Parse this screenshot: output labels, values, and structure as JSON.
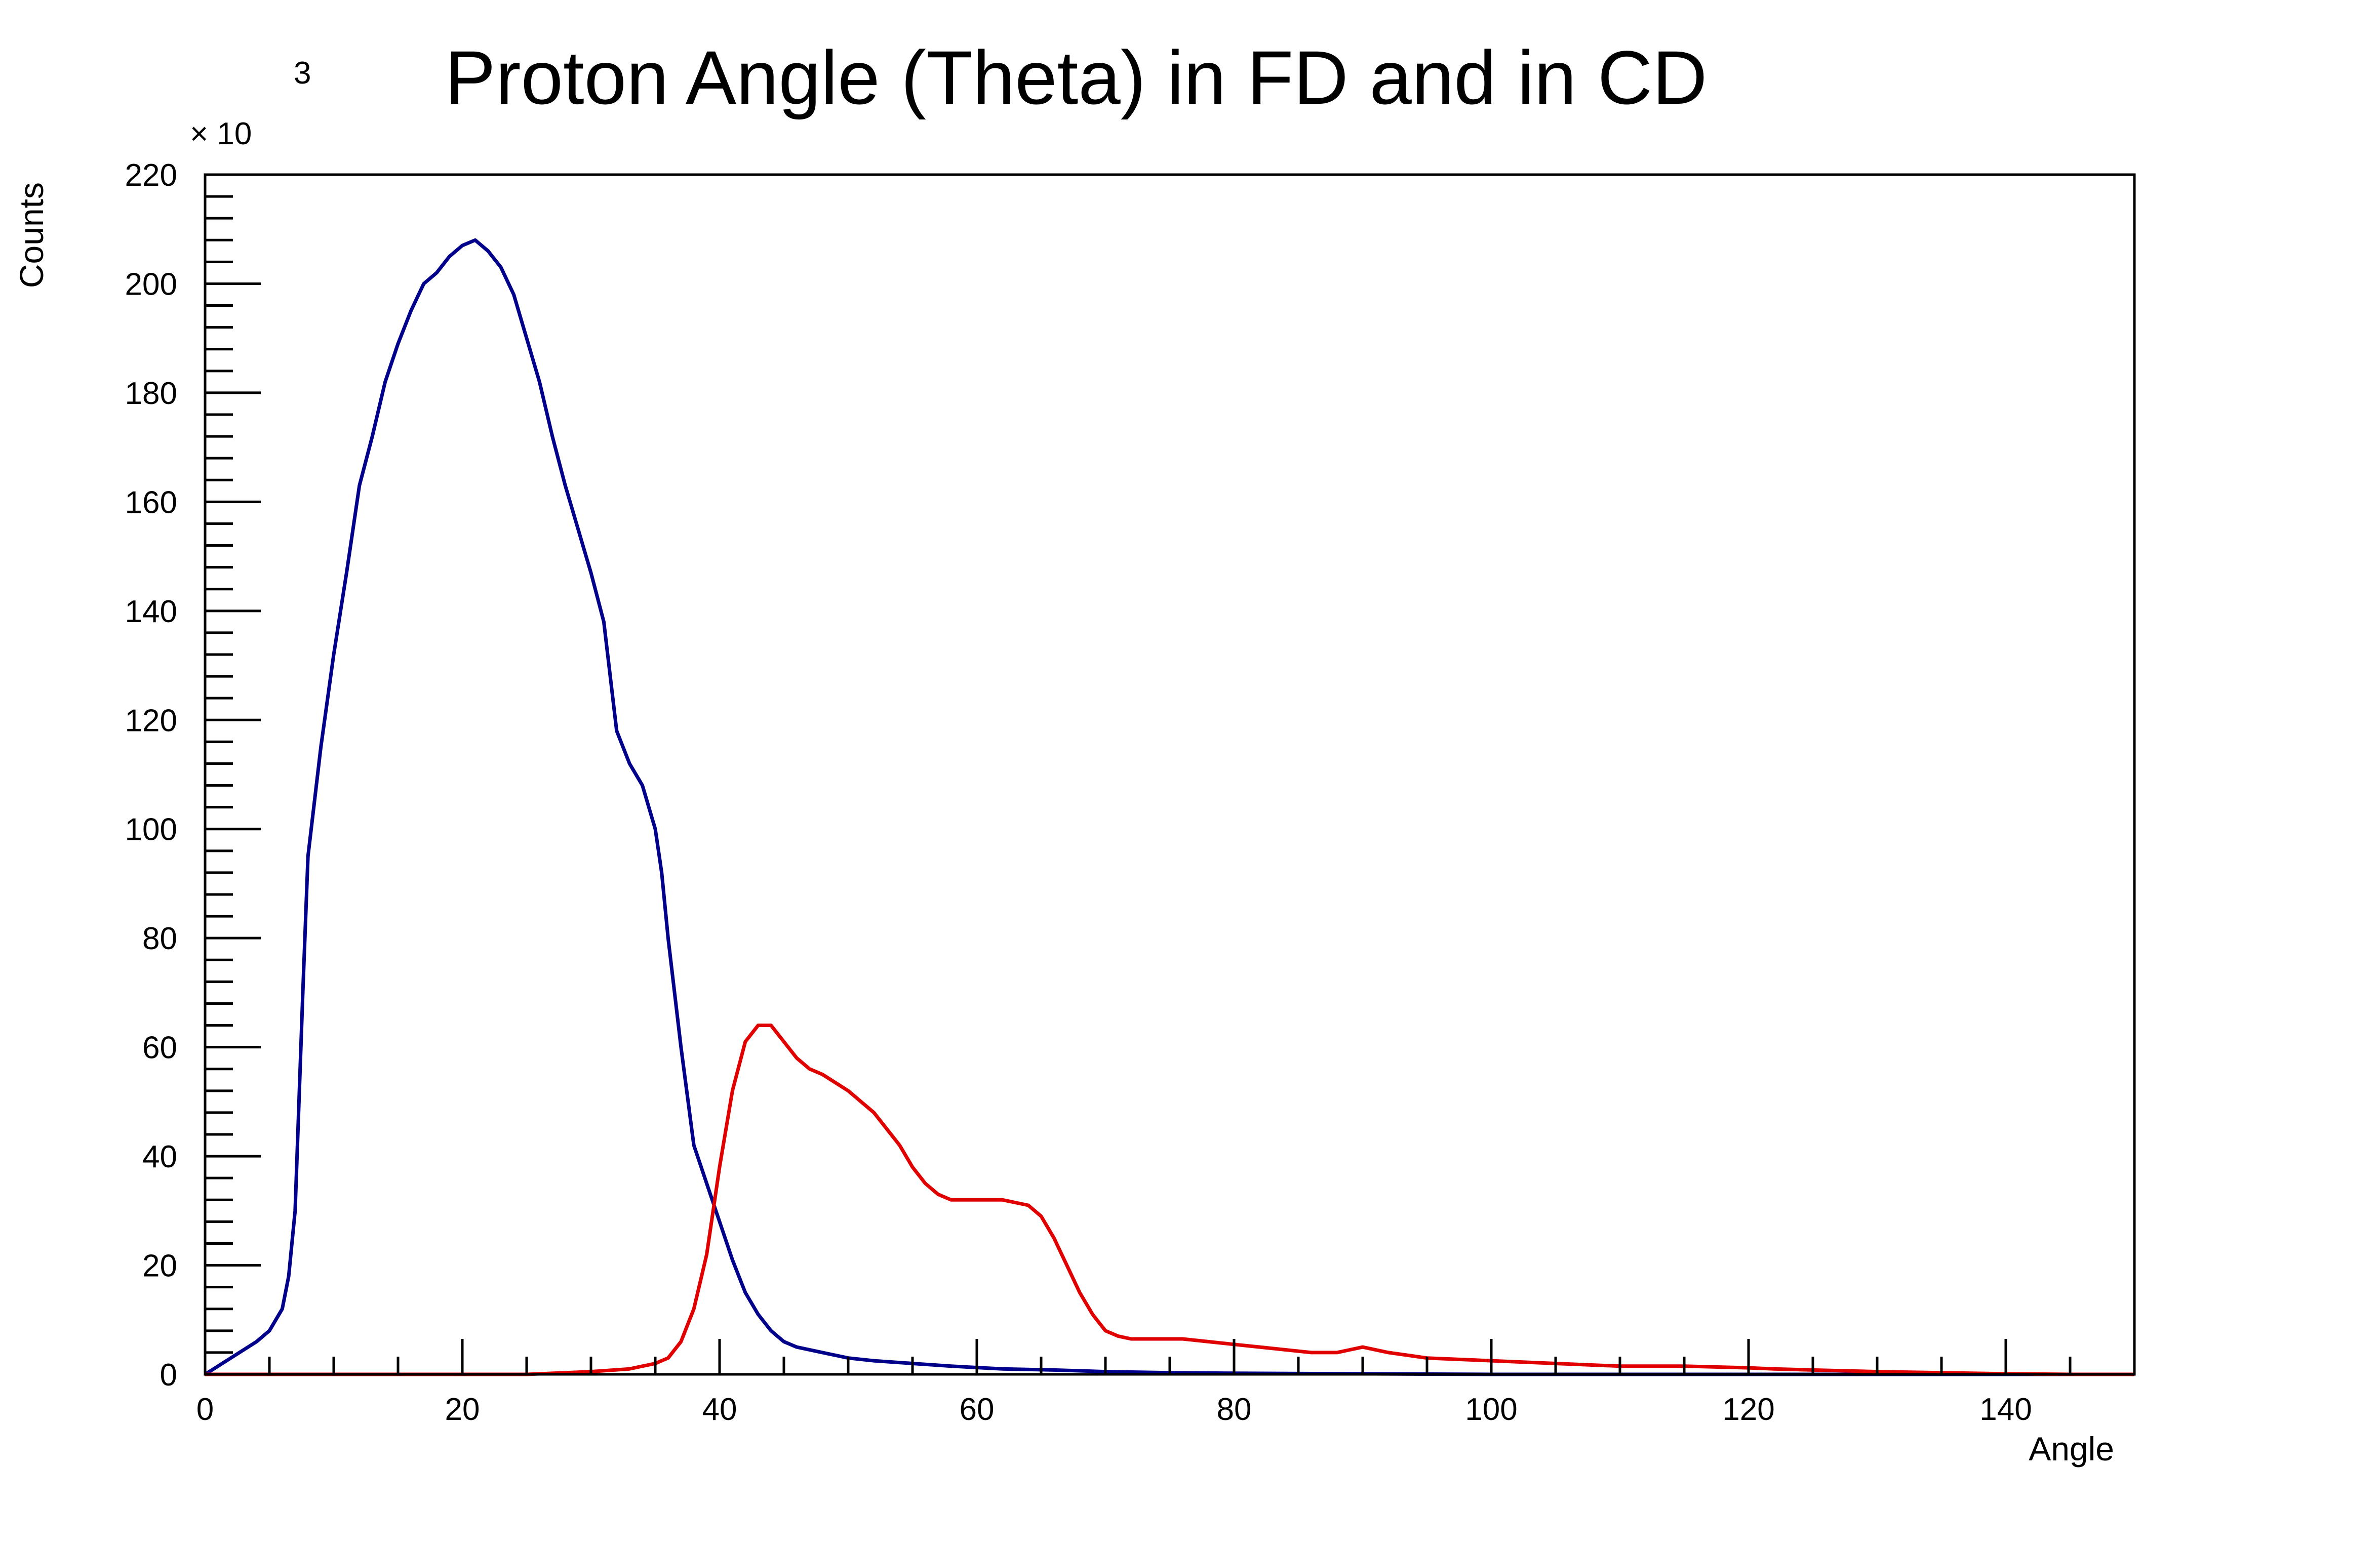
{
  "chart_data": {
    "type": "line",
    "title": "Proton Angle (Theta) in FD and in CD",
    "xlabel": "Angle",
    "ylabel": "Counts",
    "y_multiplier": "× 10",
    "y_multiplier_exponent": "3",
    "xlim": [
      0,
      150
    ],
    "ylim": [
      0,
      220
    ],
    "x_ticks": [
      "0",
      "20",
      "40",
      "60",
      "80",
      "100",
      "120",
      "140"
    ],
    "y_ticks": [
      "0",
      "20",
      "40",
      "60",
      "80",
      "100",
      "120",
      "140",
      "160",
      "180",
      "200",
      "220"
    ],
    "legend": "none",
    "grid": false,
    "series": [
      {
        "color": "#00008b",
        "x": [
          0,
          2,
          4,
          5,
          6,
          6.5,
          7,
          7.3,
          7.6,
          8,
          9,
          10,
          11,
          12,
          13,
          14,
          15,
          16,
          17,
          18,
          19,
          20,
          21,
          22,
          23,
          24,
          25,
          26,
          27,
          28,
          29,
          30,
          31,
          32,
          33,
          34,
          35,
          35.5,
          36,
          37,
          38,
          39,
          40,
          41,
          42,
          43,
          44,
          45,
          46,
          48,
          50,
          52,
          55,
          58,
          62,
          66,
          70,
          75,
          80,
          90,
          100,
          110,
          120,
          130,
          150
        ],
        "y": [
          0,
          3,
          6,
          8,
          12,
          18,
          30,
          50,
          70,
          95,
          115,
          132,
          147,
          163,
          172,
          182,
          189,
          195,
          200,
          202,
          205,
          207,
          208,
          206,
          203,
          198,
          190,
          182,
          172,
          163,
          155,
          147,
          138,
          118,
          112,
          108,
          100,
          92,
          80,
          60,
          42,
          35,
          28,
          21,
          15,
          11,
          8,
          6,
          5,
          4,
          3,
          2.5,
          2,
          1.5,
          1,
          0.8,
          0.5,
          0.3,
          0.2,
          0.1,
          0,
          0,
          0,
          0,
          0
        ]
      },
      {
        "color": "#e00000",
        "x": [
          0,
          25,
          30,
          33,
          35,
          36,
          37,
          38,
          39,
          40,
          41,
          42,
          43,
          44,
          45,
          46,
          47,
          48,
          50,
          52,
          54,
          55,
          56,
          57,
          58,
          59,
          60,
          62,
          64,
          65,
          66,
          67,
          68,
          69,
          70,
          71,
          72,
          74,
          76,
          78,
          80,
          82,
          84,
          86,
          88,
          89,
          90,
          92,
          95,
          100,
          105,
          110,
          115,
          120,
          122,
          125,
          130,
          135,
          140,
          145,
          150
        ],
        "y": [
          0,
          0,
          0.5,
          1,
          2,
          3,
          6,
          12,
          22,
          38,
          52,
          61,
          64,
          64,
          61,
          58,
          56,
          55,
          52,
          48,
          42,
          38,
          35,
          33,
          32,
          32,
          32,
          32,
          31,
          29,
          25,
          20,
          15,
          11,
          8,
          7,
          6.5,
          6.5,
          6.5,
          6,
          5.5,
          5,
          4.5,
          4,
          4,
          4.5,
          5,
          4,
          3,
          2.5,
          2,
          1.5,
          1.5,
          1.2,
          1,
          0.8,
          0.5,
          0.3,
          0.1,
          0,
          0
        ]
      }
    ]
  }
}
